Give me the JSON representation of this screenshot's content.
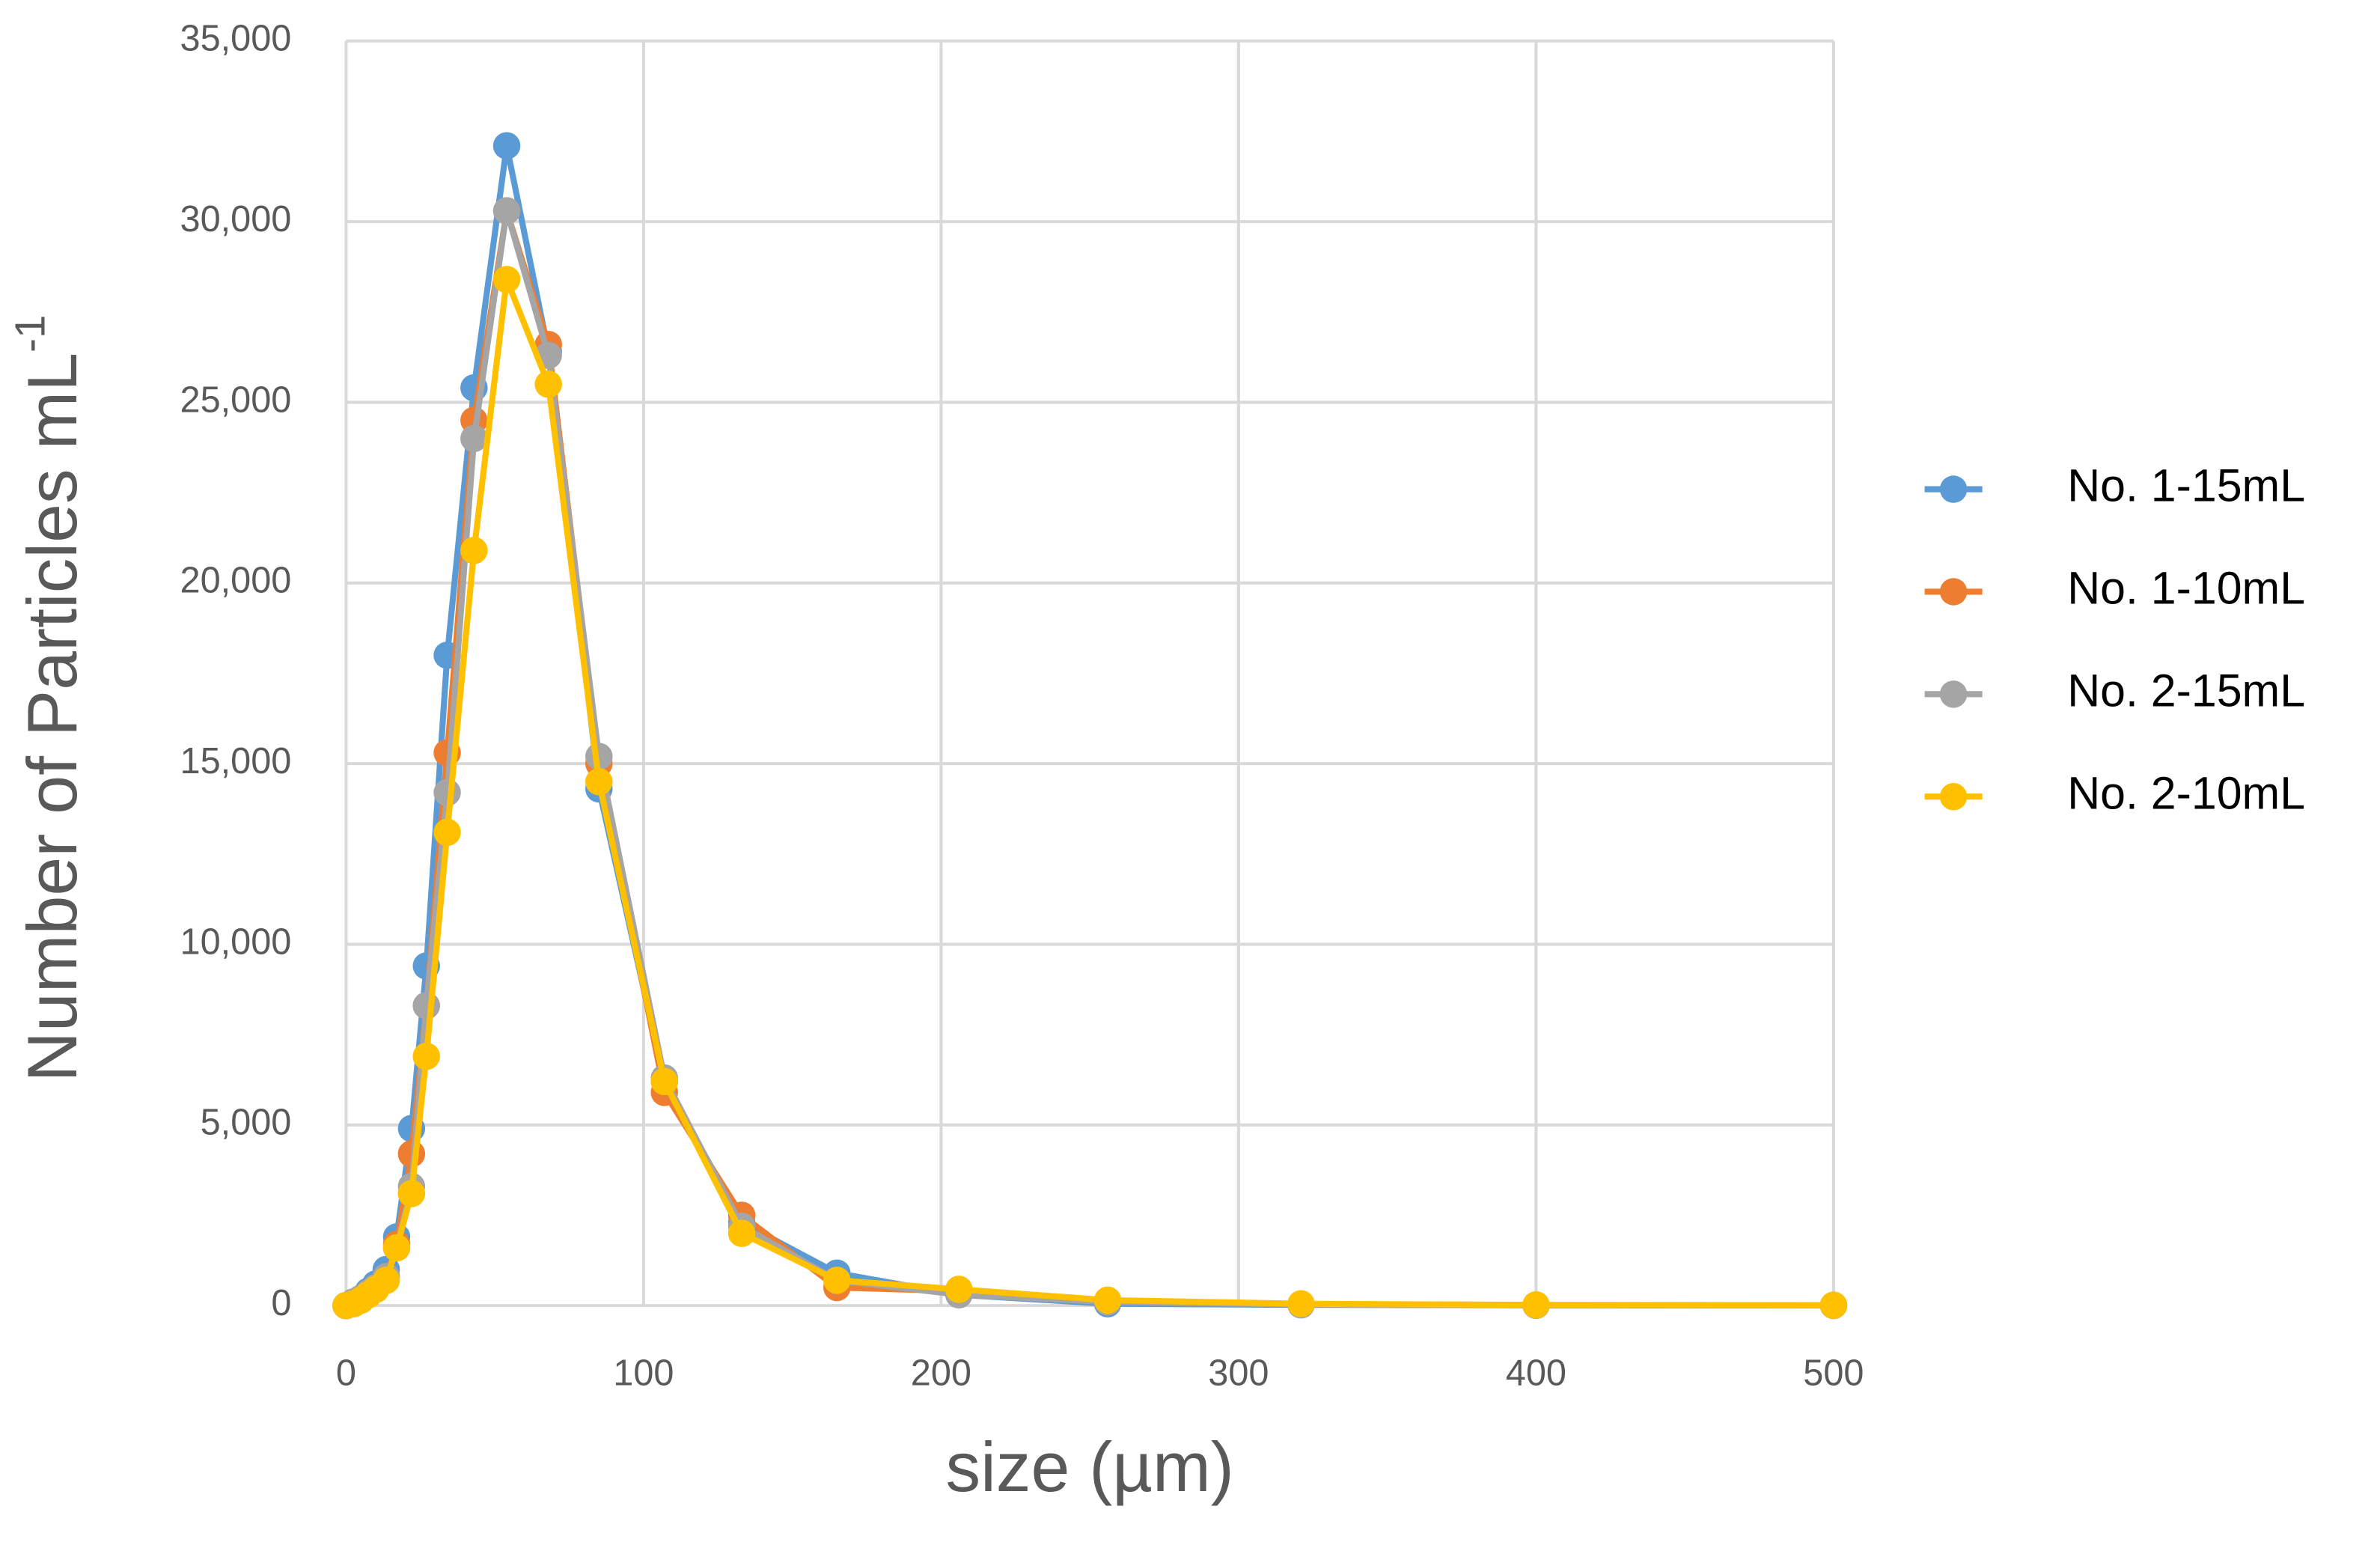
{
  "chart_data": {
    "type": "line",
    "xlabel": "size (µm)",
    "ylabel": "Number of Particles mL",
    "ylabel_superscript": "-1",
    "x": [
      0,
      2.5,
      5,
      7.5,
      10,
      13.5,
      17,
      22,
      27,
      34,
      43,
      54,
      68,
      85,
      107,
      133,
      165,
      206,
      256,
      321,
      400,
      500
    ],
    "series": [
      {
        "name": "No. 1-15mL",
        "color": "#5b9bd5",
        "values": [
          0,
          100,
          200,
          400,
          600,
          1000,
          1900,
          4900,
          9400,
          18000,
          25400,
          32100,
          26400,
          14300,
          6200,
          2300,
          900,
          300,
          50,
          20,
          10,
          5
        ]
      },
      {
        "name": "No. 1-10mL",
        "color": "#ed7d31",
        "values": [
          0,
          100,
          200,
          350,
          500,
          800,
          1700,
          4200,
          8300,
          15300,
          24500,
          30300,
          26600,
          15000,
          5900,
          2500,
          500,
          400,
          100,
          30,
          10,
          5
        ]
      },
      {
        "name": "No. 2-15mL",
        "color": "#a5a5a5",
        "values": [
          0,
          100,
          200,
          350,
          500,
          800,
          1600,
          3300,
          8300,
          14200,
          24000,
          30300,
          26300,
          15200,
          6300,
          2200,
          700,
          300,
          100,
          30,
          10,
          5
        ]
      },
      {
        "name": "No. 2-10mL",
        "color": "#ffc000",
        "values": [
          0,
          50,
          150,
          300,
          450,
          700,
          1600,
          3100,
          6900,
          13100,
          20900,
          28400,
          25500,
          14500,
          6200,
          2000,
          700,
          450,
          150,
          50,
          20,
          10
        ]
      }
    ],
    "xlim": [
      0,
      500
    ],
    "xticks": [
      0,
      100,
      200,
      300,
      400,
      500
    ],
    "ylim": [
      0,
      35000
    ],
    "yticks": [
      0,
      {
        "value": 5000,
        "label": "5,000"
      },
      {
        "value": 10000,
        "label": "10,000"
      },
      {
        "value": 15000,
        "label": "15,000"
      },
      {
        "value": 20000,
        "label": "20,000"
      },
      {
        "value": 25000,
        "label": "25,000"
      },
      {
        "value": 30000,
        "label": "30,000"
      },
      {
        "value": 35000,
        "label": "35,000"
      }
    ],
    "grid": true,
    "legend": "right"
  }
}
